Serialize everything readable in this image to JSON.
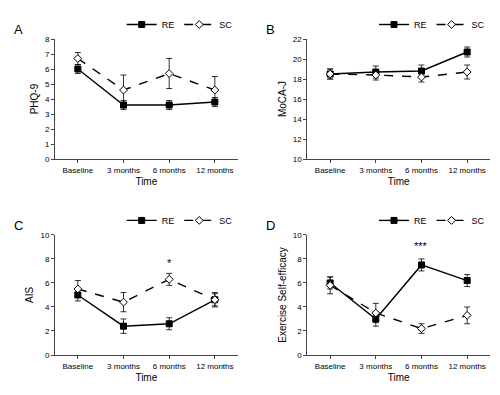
{
  "chart_data": [
    {
      "type": "line",
      "title": "A",
      "xlabel": "Time",
      "ylabel": "PHQ-9",
      "categories": [
        "Baseline",
        "3 months",
        "6 months",
        "12 months"
      ],
      "series": [
        {
          "name": "RE",
          "color": "#000000",
          "marker": "square",
          "line_style": "solid",
          "values": [
            6.0,
            3.6,
            3.6,
            3.8
          ],
          "error": [
            0.3,
            0.3,
            0.3,
            0.3
          ]
        },
        {
          "name": "SC",
          "color": "#000000",
          "marker": "diamond",
          "line_style": "dash",
          "values": [
            6.7,
            4.6,
            5.7,
            4.6
          ],
          "error": [
            0.4,
            1.0,
            1.0,
            0.9
          ]
        }
      ],
      "ylim": [
        0,
        8
      ],
      "yticks": [
        0,
        1,
        2,
        3,
        4,
        5,
        6,
        7,
        8
      ],
      "grid": false,
      "legend": "upper right"
    },
    {
      "type": "line",
      "title": "B",
      "xlabel": "Time",
      "ylabel": "MoCA-J",
      "categories": [
        "Baseline",
        "3 months",
        "6 months",
        "12 months"
      ],
      "series": [
        {
          "name": "RE",
          "color": "#000000",
          "marker": "square",
          "line_style": "solid",
          "values": [
            18.5,
            18.7,
            18.8,
            20.7
          ],
          "error": [
            0.5,
            0.6,
            0.6,
            0.5
          ]
        },
        {
          "name": "SC",
          "color": "#000000",
          "marker": "diamond",
          "line_style": "dash",
          "values": [
            18.5,
            18.4,
            18.2,
            18.7
          ],
          "error": [
            0.5,
            0.5,
            0.5,
            0.7
          ]
        }
      ],
      "ylim": [
        10,
        22
      ],
      "yticks": [
        10,
        12,
        14,
        16,
        18,
        20,
        22
      ],
      "grid": false,
      "legend": "upper right"
    },
    {
      "type": "line",
      "title": "C",
      "xlabel": "Time",
      "ylabel": "AIS",
      "categories": [
        "Baseline",
        "3 months",
        "6 months",
        "12 months"
      ],
      "series": [
        {
          "name": "RE",
          "color": "#000000",
          "marker": "square",
          "line_style": "solid",
          "values": [
            5.0,
            2.4,
            2.6,
            4.6
          ],
          "error": [
            0.5,
            0.6,
            0.5,
            0.5
          ]
        },
        {
          "name": "SC",
          "color": "#000000",
          "marker": "diamond",
          "line_style": "dash",
          "values": [
            5.5,
            4.4,
            6.3,
            4.6
          ],
          "error": [
            0.7,
            0.8,
            0.5,
            0.6
          ]
        }
      ],
      "ylim": [
        0,
        10
      ],
      "yticks": [
        0,
        2,
        4,
        6,
        8,
        10
      ],
      "grid": false,
      "legend": "upper right",
      "annotations": [
        {
          "text": "*",
          "x": "6 months",
          "y": 7.0
        }
      ]
    },
    {
      "type": "line",
      "title": "D",
      "xlabel": "Time",
      "ylabel": "Exercise Self-efficacy",
      "categories": [
        "Baseline",
        "3 months",
        "6 months",
        "12 months"
      ],
      "series": [
        {
          "name": "RE",
          "color": "#000000",
          "marker": "square",
          "line_style": "solid",
          "values": [
            6.0,
            3.0,
            7.5,
            6.2
          ],
          "error": [
            0.5,
            0.6,
            0.5,
            0.5
          ]
        },
        {
          "name": "SC",
          "color": "#000000",
          "marker": "diamond",
          "line_style": "dash",
          "values": [
            5.8,
            3.5,
            2.2,
            3.3
          ],
          "error": [
            0.7,
            0.8,
            0.4,
            0.7
          ]
        }
      ],
      "ylim": [
        0,
        10
      ],
      "yticks": [
        0,
        2,
        4,
        6,
        8,
        10
      ],
      "grid": false,
      "legend": "upper right",
      "annotations": [
        {
          "text": "***",
          "x": "6 months",
          "y": 8.4
        }
      ]
    }
  ]
}
